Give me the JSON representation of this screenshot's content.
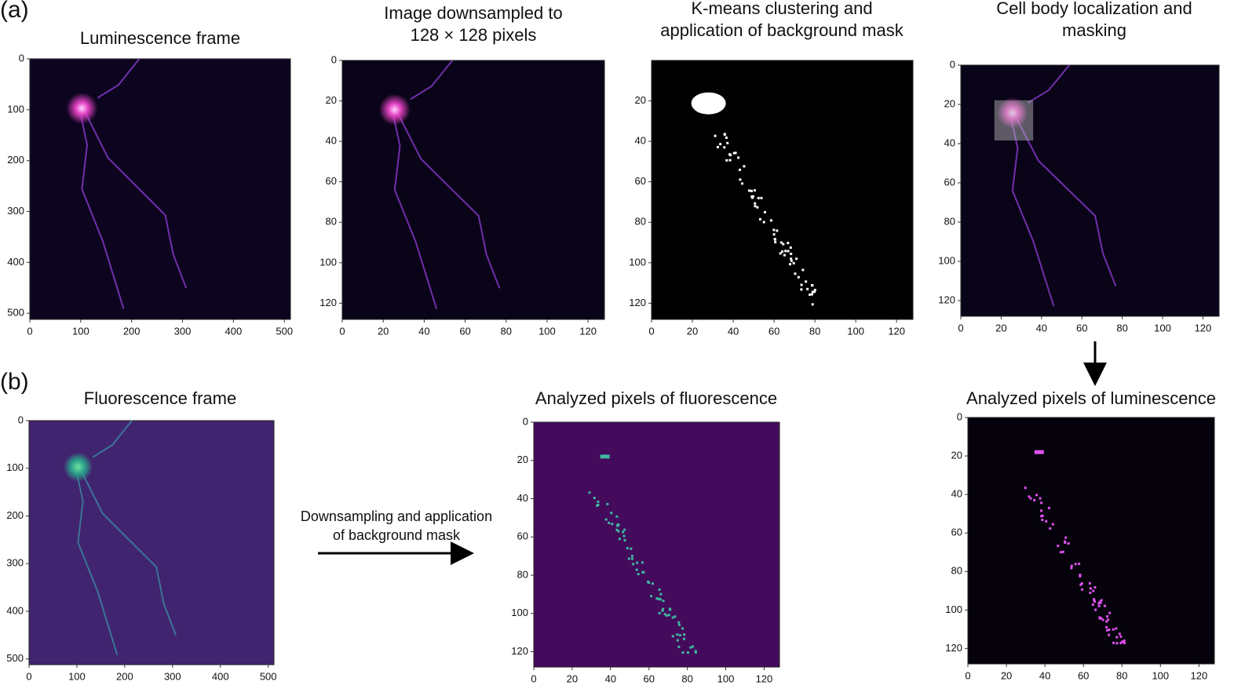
{
  "labels": {
    "a": "(a)",
    "b": "(b)"
  },
  "panels": [
    {
      "title": [
        "Luminescence frame"
      ],
      "xticks": [
        0,
        100,
        200,
        300,
        400,
        500
      ],
      "yticks": [
        0,
        100,
        200,
        300,
        400,
        500
      ]
    },
    {
      "title": [
        "Image downsampled to",
        "128 × 128 pixels"
      ],
      "xticks": [
        0,
        20,
        40,
        60,
        80,
        100,
        120
      ],
      "yticks": [
        0,
        20,
        40,
        60,
        80,
        100,
        120
      ]
    },
    {
      "title": [
        "K-means clustering and",
        "application of background mask"
      ],
      "xticks": [
        0,
        20,
        40,
        60,
        80,
        100,
        120
      ],
      "yticks": [
        20,
        40,
        60,
        80,
        100,
        120
      ]
    },
    {
      "title": [
        "Cell body localization and",
        "masking"
      ],
      "xticks": [
        0,
        20,
        40,
        60,
        80,
        100,
        120
      ],
      "yticks": [
        0,
        20,
        40,
        60,
        80,
        100,
        120
      ]
    },
    {
      "title": [
        "Fluorescence frame"
      ],
      "xticks": [
        0,
        100,
        200,
        300,
        400,
        500
      ],
      "yticks": [
        0,
        100,
        200,
        300,
        400,
        500
      ]
    },
    {
      "title": [
        "Analyzed pixels of fluorescence"
      ],
      "xticks": [
        0,
        20,
        40,
        60,
        80,
        100,
        120
      ],
      "yticks": [
        0,
        20,
        40,
        60,
        80,
        100,
        120
      ]
    },
    {
      "title": [
        "Analyzed pixels of luminescence"
      ],
      "xticks": [
        0,
        20,
        40,
        60,
        80,
        100,
        120
      ],
      "yticks": [
        0,
        20,
        40,
        60,
        80,
        100,
        120
      ]
    }
  ],
  "arrow_text": [
    "Downsampling and application",
    "of background mask"
  ]
}
